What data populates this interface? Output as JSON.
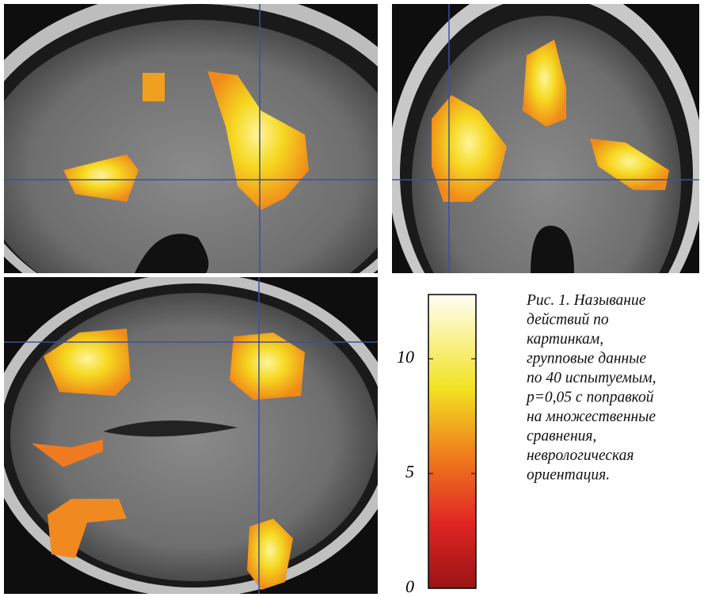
{
  "figure": {
    "colorbar": {
      "lim": [
        0,
        12.8
      ],
      "ticks": [
        0,
        5,
        10
      ]
    },
    "caption": [
      "Рис. 1. Называние",
      "действий по",
      "картинкам,",
      "групповые данные",
      "по 40 испытуемым,",
      "p=0,05 с поправкой",
      "на множественные",
      "сравнения,",
      "неврологическая",
      "ориентация."
    ]
  }
}
